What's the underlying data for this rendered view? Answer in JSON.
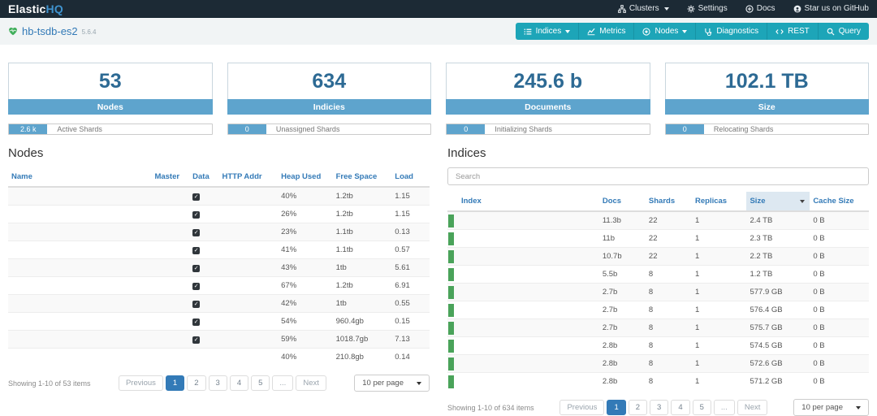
{
  "colors": {
    "navbar_bg": "#1c2a35",
    "accent_teal": "#1da5b8",
    "stat_blue": "#5ea4cd",
    "stat_number_blue": "#2d6a94",
    "link_blue": "#337ab7",
    "health_green": "#4aa35a"
  },
  "navbar": {
    "brand_elastic": "Elastic",
    "brand_hq": "HQ",
    "clusters_label": "Clusters",
    "settings_label": "Settings",
    "docs_label": "Docs",
    "github_label": "Star us on GitHub"
  },
  "clusterbar": {
    "cluster_name": "hb-tsdb-es2",
    "version": "5.6.4",
    "indices_label": "Indices",
    "metrics_label": "Metrics",
    "nodes_label": "Nodes",
    "diagnostics_label": "Diagnostics",
    "rest_label": "REST",
    "query_label": "Query"
  },
  "stats": [
    {
      "value": "53",
      "label": "Nodes",
      "badge_value": "2.6 k",
      "badge_label": "Active Shards"
    },
    {
      "value": "634",
      "label": "Indicies",
      "badge_value": "0",
      "badge_label": "Unassigned Shards"
    },
    {
      "value": "245.6 b",
      "label": "Documents",
      "badge_value": "0",
      "badge_label": "Initializing Shards"
    },
    {
      "value": "102.1 TB",
      "label": "Size",
      "badge_value": "0",
      "badge_label": "Relocating Shards"
    }
  ],
  "nodes_panel": {
    "title": "Nodes",
    "columns": [
      "Name",
      "Master",
      "Data",
      "HTTP Addr",
      "Heap Used",
      "Free Space",
      "Load"
    ],
    "rows": [
      {
        "name": "",
        "master": "",
        "data_checked": true,
        "http_addr": "",
        "heap_used": "40%",
        "free_space": "1.2tb",
        "load": "1.15"
      },
      {
        "name": "",
        "master": "",
        "data_checked": true,
        "http_addr": "",
        "heap_used": "26%",
        "free_space": "1.2tb",
        "load": "1.15"
      },
      {
        "name": "",
        "master": "",
        "data_checked": true,
        "http_addr": "",
        "heap_used": "23%",
        "free_space": "1.1tb",
        "load": "0.13"
      },
      {
        "name": "",
        "master": "",
        "data_checked": true,
        "http_addr": "",
        "heap_used": "41%",
        "free_space": "1.1tb",
        "load": "0.57"
      },
      {
        "name": "",
        "master": "",
        "data_checked": true,
        "http_addr": "",
        "heap_used": "43%",
        "free_space": "1tb",
        "load": "5.61"
      },
      {
        "name": "",
        "master": "",
        "data_checked": true,
        "http_addr": "",
        "heap_used": "67%",
        "free_space": "1.2tb",
        "load": "6.91"
      },
      {
        "name": "",
        "master": "",
        "data_checked": true,
        "http_addr": "",
        "heap_used": "42%",
        "free_space": "1tb",
        "load": "0.55"
      },
      {
        "name": "",
        "master": "",
        "data_checked": true,
        "http_addr": "",
        "heap_used": "54%",
        "free_space": "960.4gb",
        "load": "0.15"
      },
      {
        "name": "",
        "master": "",
        "data_checked": true,
        "http_addr": "",
        "heap_used": "59%",
        "free_space": "1018.7gb",
        "load": "7.13"
      },
      {
        "name": "",
        "master": "",
        "data_checked": false,
        "http_addr": "",
        "heap_used": "40%",
        "free_space": "210.8gb",
        "load": "0.14"
      }
    ],
    "pagination": {
      "summary": "Showing 1-10 of 53 items",
      "prev": "Previous",
      "pages": [
        "1",
        "2",
        "3",
        "4",
        "5",
        "..."
      ],
      "active_page": "1",
      "next": "Next",
      "per_page": "10 per page"
    }
  },
  "indices_panel": {
    "title": "Indices",
    "search_placeholder": "Search",
    "columns": [
      "Index",
      "Docs",
      "Shards",
      "Replicas",
      "Size",
      "Cache Size"
    ],
    "sorted_column": "Size",
    "rows": [
      {
        "health": "green",
        "index": "",
        "docs": "11.3b",
        "shards": "22",
        "replicas": "1",
        "size": "2.4 TB",
        "cache_size": "0 B"
      },
      {
        "health": "green",
        "index": "",
        "docs": "11b",
        "shards": "22",
        "replicas": "1",
        "size": "2.3 TB",
        "cache_size": "0 B"
      },
      {
        "health": "green",
        "index": "",
        "docs": "10.7b",
        "shards": "22",
        "replicas": "1",
        "size": "2.2 TB",
        "cache_size": "0 B"
      },
      {
        "health": "green",
        "index": "",
        "docs": "5.5b",
        "shards": "8",
        "replicas": "1",
        "size": "1.2 TB",
        "cache_size": "0 B"
      },
      {
        "health": "green",
        "index": "",
        "docs": "2.7b",
        "shards": "8",
        "replicas": "1",
        "size": "577.9 GB",
        "cache_size": "0 B"
      },
      {
        "health": "green",
        "index": "",
        "docs": "2.7b",
        "shards": "8",
        "replicas": "1",
        "size": "576.4 GB",
        "cache_size": "0 B"
      },
      {
        "health": "green",
        "index": "",
        "docs": "2.7b",
        "shards": "8",
        "replicas": "1",
        "size": "575.7 GB",
        "cache_size": "0 B"
      },
      {
        "health": "green",
        "index": "",
        "docs": "2.8b",
        "shards": "8",
        "replicas": "1",
        "size": "574.5 GB",
        "cache_size": "0 B"
      },
      {
        "health": "green",
        "index": "",
        "docs": "2.8b",
        "shards": "8",
        "replicas": "1",
        "size": "572.6 GB",
        "cache_size": "0 B"
      },
      {
        "health": "green",
        "index": "",
        "docs": "2.8b",
        "shards": "8",
        "replicas": "1",
        "size": "571.2 GB",
        "cache_size": "0 B"
      }
    ],
    "pagination": {
      "summary": "Showing 1-10 of 634 items",
      "prev": "Previous",
      "pages": [
        "1",
        "2",
        "3",
        "4",
        "5",
        "..."
      ],
      "active_page": "1",
      "next": "Next",
      "per_page": "10 per page"
    }
  }
}
